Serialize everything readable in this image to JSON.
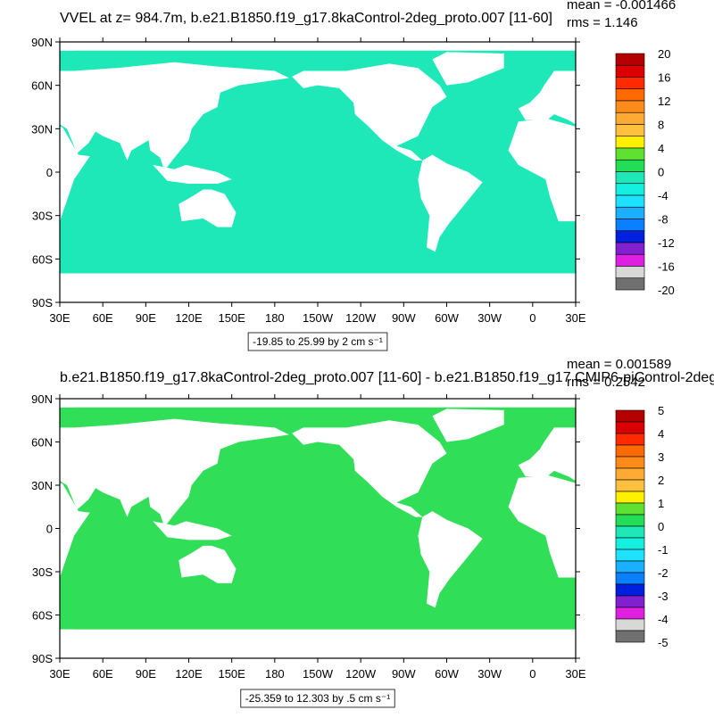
{
  "panels": [
    {
      "title": "VVEL at z= 984.7m, b.e21.B1850.f19_g17.8kaControl-2deg_proto.007 [11-60]",
      "mean": "mean = -0.001466",
      "rms": "rms = 1.146",
      "lat_labels": [
        "90N",
        "60N",
        "30N",
        "0",
        "30S",
        "60S",
        "90S"
      ],
      "lon_labels": [
        "30E",
        "60E",
        "90E",
        "120E",
        "150E",
        "180",
        "150W",
        "120W",
        "90W",
        "60W",
        "30W",
        "0",
        "30E"
      ],
      "ocean_color": "#1fe8b8",
      "colorbar": {
        "labels": [
          20,
          16,
          12,
          8,
          4,
          0,
          -4,
          -8,
          -12,
          -16,
          -20
        ],
        "colors": [
          "#b40000",
          "#dc0000",
          "#ff2a00",
          "#ff6a00",
          "#ff8c1a",
          "#ffaa33",
          "#ffc040",
          "#fff000",
          "#60e030",
          "#22dd55",
          "#1fe8b8",
          "#14f0e0",
          "#1ee0ff",
          "#1ab0ff",
          "#0a80ff",
          "#0020e0",
          "#8020d0",
          "#e020e0",
          "#d8d8d8",
          "#707070"
        ]
      },
      "range_note": "-19.85 to 25.99 by 2 cm s⁻¹"
    },
    {
      "title": "b.e21.B1850.f19_g17.8kaControl-2deg_proto.007 [11-60] - b.e21.B1850.f19_g17.CMIP6-piControl-2deg",
      "mean": "mean = 0.001589",
      "rms": "rms = 0.2542",
      "lat_labels": [
        "90N",
        "60N",
        "30N",
        "0",
        "30S",
        "60S",
        "90S"
      ],
      "lon_labels": [
        "30E",
        "60E",
        "90E",
        "120E",
        "150E",
        "180",
        "150W",
        "120W",
        "90W",
        "60W",
        "30W",
        "0",
        "30E"
      ],
      "ocean_color": "#30de58",
      "colorbar": {
        "labels": [
          5,
          4,
          3,
          2,
          1,
          0,
          -1,
          -2,
          -3,
          -4,
          -5
        ],
        "colors": [
          "#b40000",
          "#dc0000",
          "#ff2a00",
          "#ff6a00",
          "#ff8c1a",
          "#ffaa33",
          "#ffc040",
          "#fff000",
          "#60e030",
          "#22dd55",
          "#1fe8b8",
          "#14f0e0",
          "#1ee0ff",
          "#1ab0ff",
          "#0a80ff",
          "#0020e0",
          "#8020d0",
          "#e020e0",
          "#d8d8d8",
          "#707070"
        ]
      },
      "range_note": "-25.359 to 12.303 by .5 cm s⁻¹"
    }
  ]
}
